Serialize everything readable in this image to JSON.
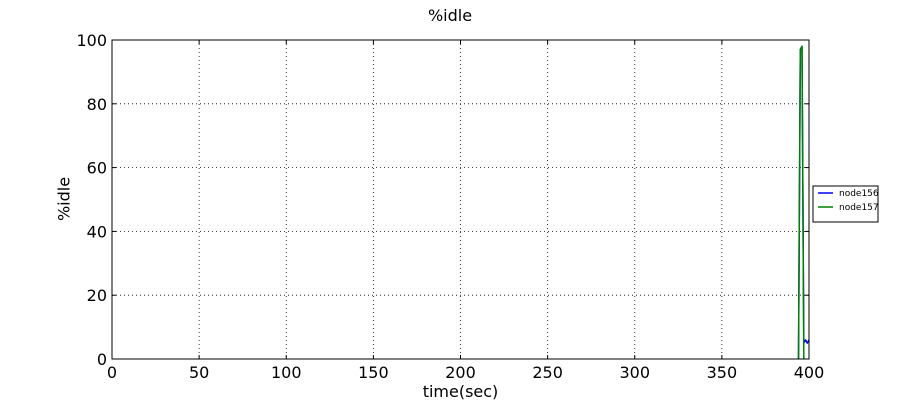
{
  "chart_data": {
    "type": "line",
    "title": "%idle",
    "xlabel": "time(sec)",
    "ylabel": "%idle",
    "xlim": [
      0,
      400
    ],
    "ylim": [
      0,
      100
    ],
    "xticks": [
      0,
      50,
      100,
      150,
      200,
      250,
      300,
      350,
      400
    ],
    "yticks": [
      0,
      20,
      40,
      60,
      80,
      100
    ],
    "grid": true,
    "legend_position": "right",
    "series": [
      {
        "name": "node156",
        "color": "#0000ff",
        "x": [
          394,
          395,
          396,
          397,
          398,
          399,
          400
        ],
        "y": [
          0,
          97,
          98,
          5,
          6,
          5,
          6
        ]
      },
      {
        "name": "node157",
        "color": "#008000",
        "x": [
          394,
          395,
          396,
          397
        ],
        "y": [
          0,
          97,
          98,
          0
        ]
      }
    ]
  }
}
